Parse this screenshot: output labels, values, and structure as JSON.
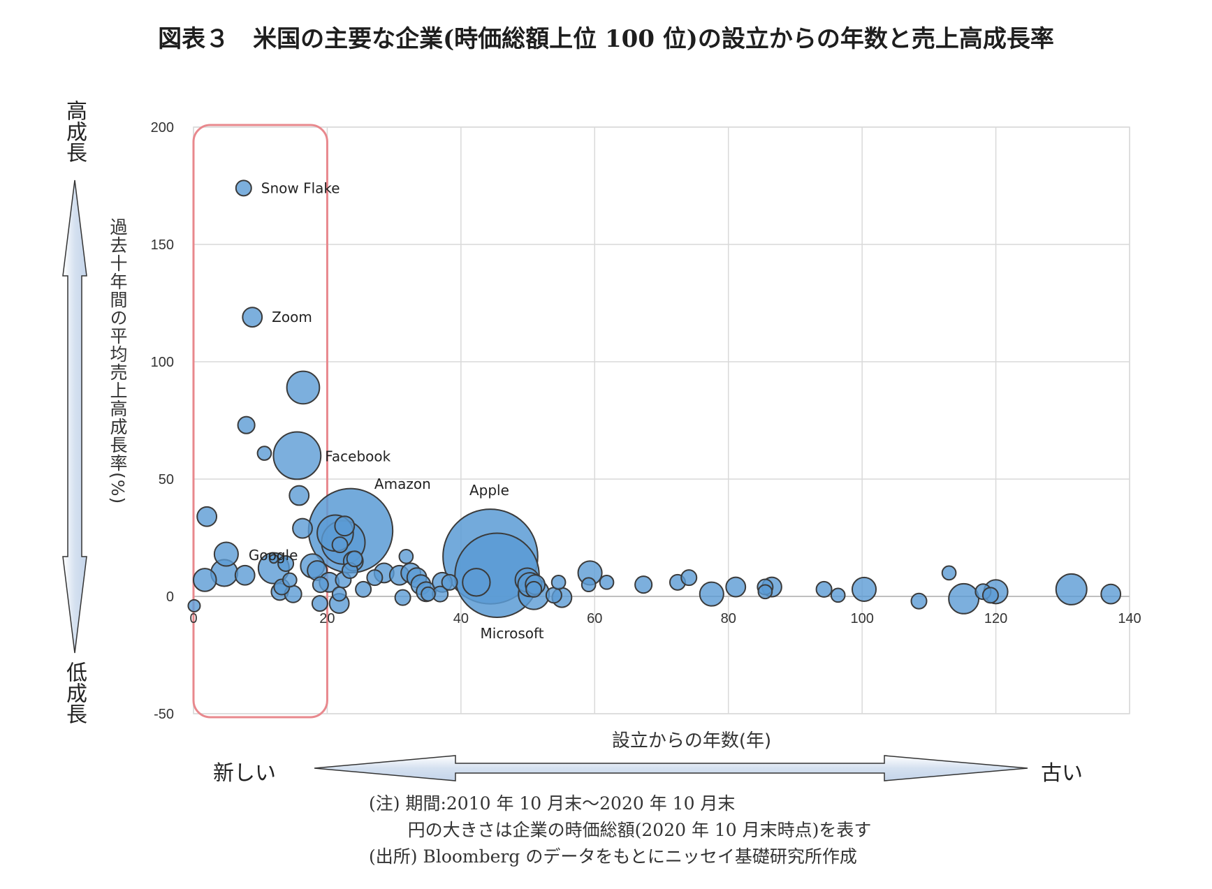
{
  "title": "図表３　米国の主要な企業(時価総額上位 100 位)の設立からの年数と売上高成長率",
  "left_axis_caption": {
    "top": "高成長",
    "bottom": "低成長"
  },
  "bottom_axis_caption": {
    "left": "新しい",
    "right": "古い"
  },
  "notes": {
    "line1": "(注) 期間:2010 年 10 月末～2020 年 10 月末",
    "line2": "       円の大きさは企業の時価総額(2020 年 10 月末時点)を表す",
    "line3": "(出所) Bloomberg のデータをもとにニッセイ基礎研究所作成"
  },
  "colors": {
    "bubble_fill": "#5b9bd5",
    "bubble_stroke": "#3a3a3a",
    "highlight": "#e8888d",
    "grid": "#d9d9d9",
    "arrow_fill": "#dce6f2"
  },
  "chart_data": {
    "type": "scatter",
    "xlabel": "設立からの年数(年)",
    "ylabel": "過去十年間の平均売上高成長率(%)",
    "xlim": [
      0,
      140
    ],
    "ylim": [
      -50,
      200
    ],
    "xticks": [
      0,
      20,
      40,
      60,
      80,
      100,
      120,
      140
    ],
    "yticks": [
      -50,
      0,
      50,
      100,
      150,
      200
    ],
    "grid": true,
    "highlight_range_x": [
      0,
      20
    ],
    "series": [
      {
        "points": [
          {
            "x": 7.5,
            "y": 174,
            "size": 1,
            "label": "Snow Flake"
          },
          {
            "x": 8.8,
            "y": 119,
            "size": 1.6,
            "label": "Zoom"
          },
          {
            "x": 16.4,
            "y": 89,
            "size": 4.5
          },
          {
            "x": 7.9,
            "y": 73,
            "size": 1.2
          },
          {
            "x": 10.6,
            "y": 61,
            "size": 0.8
          },
          {
            "x": 15.5,
            "y": 60,
            "size": 9.5,
            "label": "Facebook"
          },
          {
            "x": 15.8,
            "y": 43,
            "size": 1.6
          },
          {
            "x": 2,
            "y": 34,
            "size": 1.6
          },
          {
            "x": 16.3,
            "y": 29,
            "size": 1.6
          },
          {
            "x": 4.9,
            "y": 18,
            "size": 2.4
          },
          {
            "x": 12,
            "y": 16,
            "size": 0.3,
            "label": "Google"
          },
          {
            "x": 0.1,
            "y": -4,
            "size": 0.6
          },
          {
            "x": 1.7,
            "y": 7,
            "size": 2.2
          },
          {
            "x": 4.6,
            "y": 10,
            "size": 3
          },
          {
            "x": 7.7,
            "y": 9,
            "size": 1.6
          },
          {
            "x": 12,
            "y": 12,
            "size": 4
          },
          {
            "x": 13.8,
            "y": 14,
            "size": 1
          },
          {
            "x": 14.4,
            "y": 7,
            "size": 0.8
          },
          {
            "x": 13.2,
            "y": 4,
            "size": 1
          },
          {
            "x": 12.9,
            "y": 2,
            "size": 1.2
          },
          {
            "x": 14.9,
            "y": 1,
            "size": 1.2
          },
          {
            "x": 17.8,
            "y": 13,
            "size": 2.4
          },
          {
            "x": 18.5,
            "y": 11,
            "size": 1.6
          },
          {
            "x": 19,
            "y": 5,
            "size": 1
          },
          {
            "x": 18.9,
            "y": -3,
            "size": 1
          },
          {
            "x": 20.3,
            "y": 6,
            "size": 1.6
          },
          {
            "x": 21.8,
            "y": 1,
            "size": 0.8
          },
          {
            "x": 21.8,
            "y": -3,
            "size": 1.6
          },
          {
            "x": 22.4,
            "y": 7,
            "size": 1
          },
          {
            "x": 23.4,
            "y": 11,
            "size": 1
          },
          {
            "x": 23.9,
            "y": 15,
            "size": 1.6
          },
          {
            "x": 21.9,
            "y": 22,
            "size": 1
          },
          {
            "x": 22.6,
            "y": 30,
            "size": 1.6
          },
          {
            "x": 24.1,
            "y": 16,
            "size": 1
          },
          {
            "x": 21.2,
            "y": 27,
            "size": 5.5
          },
          {
            "x": 22.4,
            "y": 23,
            "size": 8
          },
          {
            "x": 23.5,
            "y": 28,
            "size": 30,
            "label": "Amazon"
          },
          {
            "x": 25.4,
            "y": 3,
            "size": 1
          },
          {
            "x": 27.1,
            "y": 8,
            "size": 1
          },
          {
            "x": 28.5,
            "y": 10,
            "size": 1.6
          },
          {
            "x": 30.8,
            "y": 9,
            "size": 1.6
          },
          {
            "x": 31.8,
            "y": 17,
            "size": 0.8
          },
          {
            "x": 32.5,
            "y": 10,
            "size": 1.6
          },
          {
            "x": 33.4,
            "y": 8,
            "size": 1.6
          },
          {
            "x": 34,
            "y": 5,
            "size": 1.6
          },
          {
            "x": 31.3,
            "y": -0.5,
            "size": 1
          },
          {
            "x": 34.8,
            "y": 2,
            "size": 1.6
          },
          {
            "x": 35.1,
            "y": 1,
            "size": 0.8
          },
          {
            "x": 36.9,
            "y": 1,
            "size": 1
          },
          {
            "x": 37.2,
            "y": 6,
            "size": 1.6
          },
          {
            "x": 38.3,
            "y": 6,
            "size": 1
          },
          {
            "x": 42.3,
            "y": 6,
            "size": 3.2
          },
          {
            "x": 44.4,
            "y": 17,
            "size": 38,
            "label": "Apple"
          },
          {
            "x": 45.4,
            "y": 9,
            "size": 30,
            "label": "Microsoft"
          },
          {
            "x": 49.9,
            "y": 7,
            "size": 2.4
          },
          {
            "x": 50.3,
            "y": 5,
            "size": 2.4
          },
          {
            "x": 50.9,
            "y": 1,
            "size": 4
          },
          {
            "x": 51.1,
            "y": 5,
            "size": 1.6
          },
          {
            "x": 50.9,
            "y": 3,
            "size": 1
          },
          {
            "x": 53.9,
            "y": 0.5,
            "size": 1
          },
          {
            "x": 55.1,
            "y": -0.5,
            "size": 1.6
          },
          {
            "x": 54.6,
            "y": 6,
            "size": 0.8
          },
          {
            "x": 59.3,
            "y": 10,
            "size": 2.4
          },
          {
            "x": 59.1,
            "y": 5,
            "size": 0.8
          },
          {
            "x": 61.8,
            "y": 6,
            "size": 0.8
          },
          {
            "x": 67.3,
            "y": 5,
            "size": 1.2
          },
          {
            "x": 72.4,
            "y": 6,
            "size": 1
          },
          {
            "x": 74.1,
            "y": 8,
            "size": 1
          },
          {
            "x": 77.5,
            "y": 1,
            "size": 2.4
          },
          {
            "x": 81.1,
            "y": 4,
            "size": 1.6
          },
          {
            "x": 85.5,
            "y": 4,
            "size": 1
          },
          {
            "x": 86.5,
            "y": 4,
            "size": 1.6
          },
          {
            "x": 85.5,
            "y": 2,
            "size": 0.8
          },
          {
            "x": 94.3,
            "y": 3,
            "size": 1
          },
          {
            "x": 96.4,
            "y": 0.5,
            "size": 0.8
          },
          {
            "x": 100.3,
            "y": 3,
            "size": 2.4
          },
          {
            "x": 108.5,
            "y": -2,
            "size": 1
          },
          {
            "x": 113,
            "y": 10,
            "size": 0.8
          },
          {
            "x": 115.2,
            "y": -1,
            "size": 3.8
          },
          {
            "x": 118.1,
            "y": 2,
            "size": 1
          },
          {
            "x": 119.2,
            "y": 0.5,
            "size": 1
          },
          {
            "x": 120,
            "y": 2,
            "size": 2.4
          },
          {
            "x": 131.3,
            "y": 3,
            "size": 4
          },
          {
            "x": 137.2,
            "y": 1,
            "size": 1.6
          }
        ]
      }
    ]
  }
}
